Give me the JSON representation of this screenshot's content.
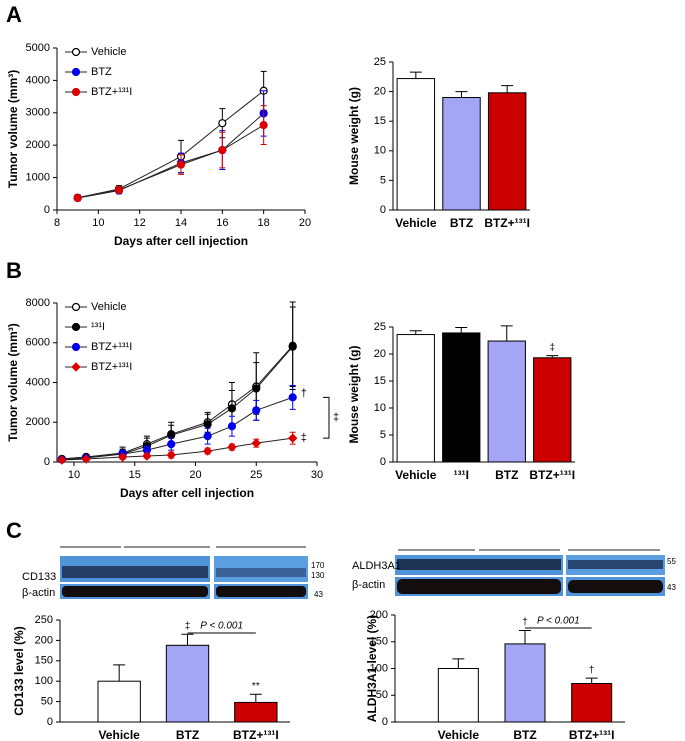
{
  "panels": [
    "A",
    "B",
    "C"
  ],
  "blots": [
    {
      "labels": [
        "CD133",
        "β-actin"
      ],
      "markers": [
        "170",
        "130",
        "43"
      ]
    },
    {
      "labels": [
        "ALDH3A1",
        "β-actin"
      ],
      "markers": [
        "55",
        "43"
      ]
    }
  ],
  "chart_data": [
    {
      "type": "line",
      "xlabel": "Days after cell injection",
      "ylabel": "Tumor volume (mm³)",
      "x": [
        9,
        11,
        14,
        16,
        18
      ],
      "xlim": [
        8,
        20
      ],
      "xticks": [
        8,
        10,
        12,
        14,
        16,
        18,
        20
      ],
      "ylim": [
        0,
        5000
      ],
      "yticks": [
        0,
        1000,
        2000,
        3000,
        4000,
        5000
      ],
      "legend": "upper left",
      "series": [
        {
          "name": "Vehicle",
          "color": "#000000",
          "marker": "open-circle",
          "values": [
            380,
            650,
            1650,
            2680,
            3680
          ],
          "errors": [
            90,
            100,
            500,
            450,
            600
          ]
        },
        {
          "name": "BTZ",
          "color": "#0000ee",
          "marker": "circle",
          "values": [
            370,
            600,
            1450,
            1850,
            2980
          ],
          "errors": [
            80,
            100,
            300,
            600,
            700
          ]
        },
        {
          "name": "BTZ+¹³¹I",
          "color": "#dd0000",
          "marker": "circle",
          "values": [
            370,
            620,
            1400,
            1850,
            2620
          ],
          "errors": [
            80,
            100,
            300,
            550,
            600
          ]
        }
      ]
    },
    {
      "type": "bar",
      "ylabel": "Mouse weight (g)",
      "categories": [
        "Vehicle",
        "BTZ",
        "BTZ+¹³¹I"
      ],
      "values": [
        22.2,
        19.0,
        19.8
      ],
      "errors": [
        1.1,
        1.0,
        1.2
      ],
      "colors": [
        "#ffffff",
        "#a5a5f5",
        "#cc0000"
      ],
      "ylim": [
        0,
        25
      ],
      "yticks": [
        0,
        5,
        10,
        15,
        20,
        25
      ]
    },
    {
      "type": "line",
      "xlabel": "Days after cell injection",
      "ylabel": "Tumor volume (mm³)",
      "x": [
        9,
        11,
        14,
        16,
        18,
        21,
        23,
        25,
        28
      ],
      "xlim": [
        8.6,
        30
      ],
      "xticks": [
        10,
        15,
        20,
        25,
        30
      ],
      "ylim": [
        0,
        8000
      ],
      "yticks": [
        0,
        2000,
        4000,
        6000,
        8000
      ],
      "legend": "upper left",
      "annotations": [
        "†",
        "‡",
        "‡"
      ],
      "series": [
        {
          "name": "Vehicle",
          "color": "#000000",
          "marker": "open-circle",
          "values": [
            150,
            250,
            450,
            900,
            1400,
            2000,
            2900,
            3800,
            5850
          ],
          "errors": [
            50,
            100,
            300,
            400,
            600,
            500,
            1100,
            1700,
            2200
          ]
        },
        {
          "name": "¹³¹I",
          "color": "#000000",
          "marker": "circle",
          "values": [
            150,
            250,
            400,
            800,
            1350,
            1900,
            2700,
            3700,
            5800
          ],
          "errors": [
            50,
            100,
            250,
            400,
            500,
            500,
            900,
            1300,
            2000
          ]
        },
        {
          "name": "BTZ+¹³¹I",
          "color": "#0000ee",
          "marker": "circle",
          "values": [
            120,
            200,
            400,
            600,
            900,
            1300,
            1800,
            2600,
            3250
          ],
          "errors": [
            50,
            80,
            200,
            200,
            300,
            400,
            500,
            500,
            600
          ]
        },
        {
          "name": "BTZ+¹³¹I",
          "color": "#dd0000",
          "marker": "diamond",
          "values": [
            100,
            150,
            250,
            300,
            350,
            550,
            750,
            950,
            1200
          ],
          "errors": [
            30,
            50,
            100,
            100,
            150,
            150,
            150,
            200,
            300
          ]
        }
      ]
    },
    {
      "type": "bar",
      "ylabel": "Mouse weight (g)",
      "categories": [
        "Vehicle",
        "¹³¹I",
        "BTZ",
        "BTZ+¹³¹I"
      ],
      "values": [
        23.6,
        23.9,
        22.4,
        19.3
      ],
      "errors": [
        0.7,
        1.0,
        2.8,
        0.4
      ],
      "colors": [
        "#ffffff",
        "#000000",
        "#a5a5f5",
        "#cc0000"
      ],
      "annotations": [
        null,
        null,
        null,
        "‡"
      ],
      "ylim": [
        0,
        25
      ],
      "yticks": [
        0,
        5,
        10,
        15,
        20,
        25
      ]
    },
    {
      "type": "bar",
      "ylabel": "CD133 level (%)",
      "categories": [
        "Vehicle",
        "BTZ",
        "BTZ+¹³¹I"
      ],
      "values": [
        100,
        188,
        48
      ],
      "errors": [
        40,
        27,
        20
      ],
      "colors": [
        "#ffffff",
        "#a5a5f5",
        "#cc0000"
      ],
      "annotations": [
        null,
        "‡",
        "**"
      ],
      "comparison": "P < 0.001",
      "ylim": [
        0,
        250
      ],
      "yticks": [
        0,
        50,
        100,
        150,
        200,
        250
      ]
    },
    {
      "type": "bar",
      "ylabel": "ALDH3A1 level (%)",
      "categories": [
        "Vehicle",
        "BTZ",
        "BTZ+¹³¹I"
      ],
      "values": [
        100,
        146,
        72
      ],
      "errors": [
        18,
        25,
        10
      ],
      "colors": [
        "#ffffff",
        "#a5a5f5",
        "#cc0000"
      ],
      "annotations": [
        null,
        "†",
        "†"
      ],
      "comparison": "P < 0.001",
      "ylim": [
        0,
        200
      ],
      "yticks": [
        0,
        50,
        100,
        150,
        200
      ]
    }
  ]
}
